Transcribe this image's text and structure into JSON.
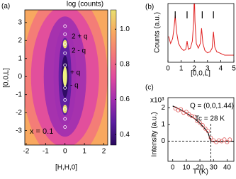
{
  "chart_data": [
    {
      "type": "heatmap",
      "panel": "(a)",
      "colorbar_title": "log (counts)",
      "xlabel": "[H,H,0]",
      "ylabel": "[0,0,L]",
      "xlim": [
        -2.07,
        2.2
      ],
      "ylim": [
        -3.8,
        3.7
      ],
      "xticks": [
        -2,
        -1,
        0,
        1,
        2
      ],
      "yticks": [
        -3,
        -2,
        -1,
        0,
        1,
        2,
        3
      ],
      "clim": [
        0.34,
        1.11
      ],
      "cticks": [
        0.4,
        0.6,
        0.8,
        {
          "value": 1,
          "label": "1.0"
        }
      ],
      "colormap": [
        "#2a0a5e",
        "#5a1ea0",
        "#a02fb0",
        "#e04aa0",
        "#f3787a",
        "#f8a860",
        "#e8e070"
      ],
      "annotations": [
        "2 + q",
        "2 - q",
        "+ q",
        "- q",
        "x = 0.1"
      ],
      "markers_L": [
        2.8,
        2.35,
        1.8,
        1.3,
        0.63,
        -0.63,
        -1.3,
        -1.8,
        -2.35,
        -2.8
      ]
    },
    {
      "type": "line",
      "panel": "(b)",
      "xlabel": "[0,0,L]",
      "ylabel": "Counts (a.u.)",
      "xlim": [
        0,
        5
      ],
      "ylim": [
        0,
        5
      ],
      "xticks": [
        0,
        1,
        2,
        3,
        4,
        5
      ],
      "peak_markers": [
        0.55,
        1.45,
        2.6,
        3.45
      ],
      "x": [
        0.05,
        0.2,
        0.35,
        0.45,
        0.55,
        0.65,
        0.8,
        1.0,
        1.2,
        1.35,
        1.45,
        1.55,
        1.7,
        1.85,
        1.95,
        2.0,
        2.05,
        2.15,
        2.3,
        2.45,
        2.55,
        2.65,
        2.8,
        3.0,
        3.2,
        3.35,
        3.45,
        3.55,
        3.7,
        3.9,
        4.1,
        4.3,
        4.5,
        4.7,
        4.9,
        5.0
      ],
      "series": [
        {
          "color": "#e02020",
          "values": [
            2.2,
            1.6,
            2.0,
            2.8,
            4.0,
            2.6,
            1.6,
            1.2,
            1.0,
            1.1,
            1.8,
            1.1,
            1.2,
            1.8,
            3.5,
            6,
            3.5,
            1.6,
            1.2,
            1.6,
            2.9,
            1.6,
            1.0,
            0.8,
            0.9,
            1.2,
            2.6,
            1.3,
            0.9,
            0.8,
            0.7,
            0.6,
            0.6,
            0.6,
            0.6,
            0.6
          ]
        }
      ]
    },
    {
      "type": "scatter",
      "panel": "(c)",
      "xlabel": "T (K)",
      "ylabel": "Intensity (a.u.)",
      "y_multiplier": "x10³",
      "annotations": [
        "Q = (0,0,1.44)",
        "Tc = 28 K"
      ],
      "tc": 28,
      "baseline": 0,
      "xlim": [
        -3.5,
        45
      ],
      "ylim": [
        -1.2,
        2.6
      ],
      "xticks": [
        0,
        10,
        20,
        30,
        40
      ],
      "yticks": [
        0,
        1,
        2
      ],
      "points": {
        "color": "#e06060",
        "x": [
          2,
          4,
          6,
          8,
          10,
          12,
          14,
          16,
          18,
          20,
          22,
          24,
          26,
          28,
          30,
          32,
          34,
          36,
          38,
          40,
          42
        ],
        "values": [
          1.95,
          1.85,
          1.9,
          1.7,
          1.75,
          1.6,
          1.5,
          1.45,
          1.2,
          1.1,
          0.95,
          0.75,
          0.6,
          0.2,
          0.05,
          -0.05,
          0.05,
          0,
          0.1,
          -0.05,
          0.1
        ]
      },
      "fit": {
        "color": "#000000",
        "x": [
          0,
          4,
          8,
          12,
          16,
          20,
          24,
          26,
          28,
          30,
          35,
          40,
          45
        ],
        "values": [
          2.1,
          1.95,
          1.78,
          1.58,
          1.35,
          1.07,
          0.72,
          0.5,
          0,
          0,
          0,
          0,
          0
        ]
      }
    }
  ]
}
